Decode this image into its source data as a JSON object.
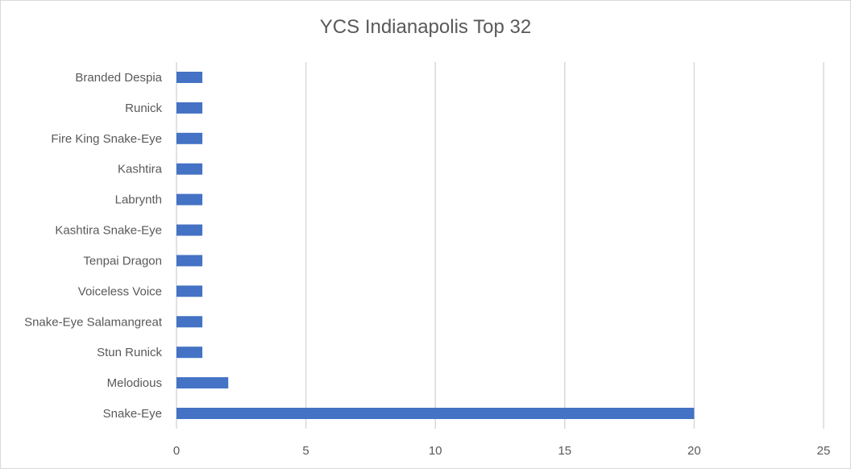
{
  "chart_data": {
    "type": "bar",
    "orientation": "horizontal",
    "title": "YCS Indianapolis Top 32",
    "categories": [
      "Branded Despia",
      "Runick",
      "Fire King Snake-Eye",
      "Kashtira",
      "Labrynth",
      "Kashtira Snake-Eye",
      "Tenpai Dragon",
      "Voiceless Voice",
      "Snake-Eye Salamangreat",
      "Stun Runick",
      "Melodious",
      "Snake-Eye"
    ],
    "values": [
      1,
      1,
      1,
      1,
      1,
      1,
      1,
      1,
      1,
      1,
      2,
      20
    ],
    "xlim": [
      0,
      25
    ],
    "xticks": [
      "0",
      "5",
      "10",
      "15",
      "20",
      "25"
    ],
    "xlabel": "",
    "ylabel": "",
    "grid": "vertical",
    "legend": "none",
    "bar_color": "#4472c4",
    "grid_color": "#d9d9d9"
  }
}
